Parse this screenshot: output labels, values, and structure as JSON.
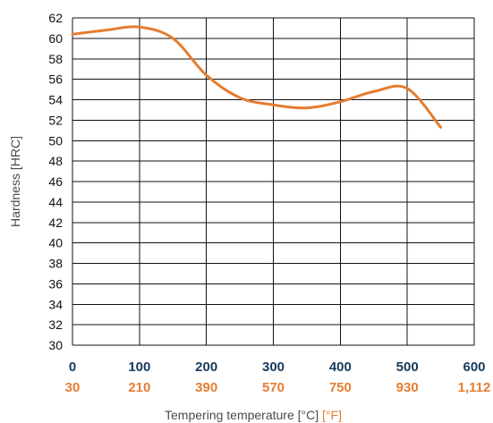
{
  "chart_data": {
    "type": "line",
    "title": "",
    "ylabel": "Hardness [HRC]",
    "xlabel_parts": {
      "prefix": "Tempering temperature ",
      "celsius": "[°C]",
      "fahrenheit": "[°F]"
    },
    "x_ticks_celsius": [
      "0",
      "100",
      "200",
      "300",
      "400",
      "500",
      "600"
    ],
    "x_ticks_fahrenheit": [
      "30",
      "210",
      "390",
      "570",
      "750",
      "930",
      "1,112"
    ],
    "y_ticks": [
      "30",
      "32",
      "34",
      "36",
      "38",
      "40",
      "42",
      "44",
      "46",
      "48",
      "50",
      "52",
      "54",
      "56",
      "58",
      "60",
      "62"
    ],
    "xlim": [
      0,
      600
    ],
    "ylim": [
      30,
      62
    ],
    "grid": true,
    "series": [
      {
        "x": [
          0,
          50,
          100,
          150,
          200,
          250,
          300,
          350,
          400,
          450,
          500,
          550
        ],
        "y": [
          60.4,
          60.8,
          61.1,
          60.0,
          56.4,
          54.2,
          53.5,
          53.2,
          53.8,
          54.8,
          55.1,
          51.3
        ],
        "color": "#e57d2f"
      }
    ],
    "colors": {
      "grid": "#111111",
      "celsius": "#173b5c",
      "fahrenheit": "#e57d2f",
      "text": "#111111",
      "axis_title": "#4a4a4a"
    }
  }
}
